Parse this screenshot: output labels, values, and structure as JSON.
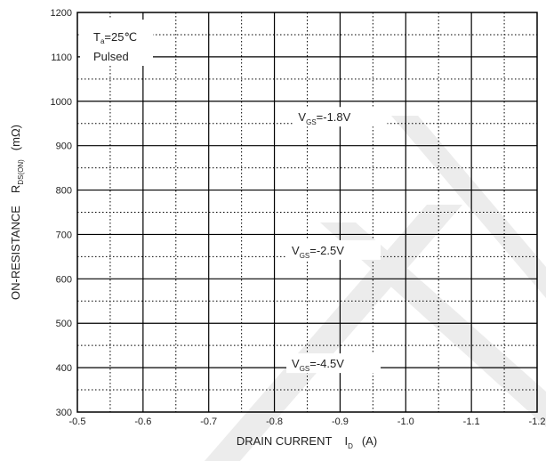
{
  "chart_data": {
    "type": "line",
    "xlabel": "DRAIN CURRENT",
    "xlabel_symbol": "I",
    "xlabel_subscript": "D",
    "xlabel_unit": "(A)",
    "ylabel": "ON-RESISTANCE",
    "ylabel_symbol": "R",
    "ylabel_subscript": "DS(ON)",
    "ylabel_unit": "(mΩ)",
    "x_ticks": [
      "-0.5",
      "-0.6",
      "-0.7",
      "-0.8",
      "-0.9",
      "-1.0",
      "-1.1",
      "-1.2"
    ],
    "y_ticks": [
      "1200",
      "1100",
      "1000",
      "900",
      "800",
      "700",
      "600",
      "500",
      "400",
      "300"
    ],
    "xlim": [
      -0.5,
      -1.2
    ],
    "ylim": [
      300,
      1200
    ],
    "grid": true,
    "series": [],
    "conditions": {
      "ta_symbol": "T",
      "ta_subscript": "a",
      "ta_value": "=25℃",
      "mode": "Pulsed"
    },
    "annotations": [
      {
        "symbol": "V",
        "subscript": "GS",
        "value": "=-1.8V",
        "x": -0.9,
        "y": 955
      },
      {
        "symbol": "V",
        "subscript": "GS",
        "value": "=-2.5V",
        "x": -0.89,
        "y": 655
      },
      {
        "symbol": "V",
        "subscript": "GS",
        "value": "=-4.5V",
        "x": -0.89,
        "y": 400
      }
    ],
    "colors": {
      "grid": "#000000",
      "text": "#222222",
      "watermark": "#e8e8e8"
    }
  }
}
